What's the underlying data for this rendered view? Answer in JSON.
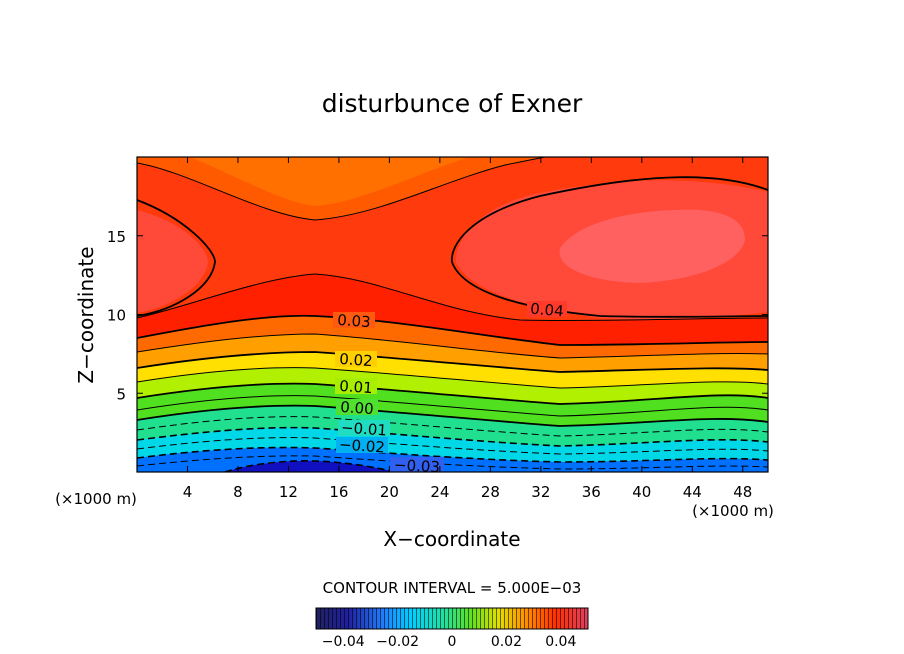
{
  "chart_data": {
    "type": "contour",
    "title": "disturbunce of Exner",
    "xlabel": "X−coordinate",
    "ylabel": "Z−coordinate",
    "x_unit_left": "(×1000 m)",
    "x_unit_right": "(×1000 m)",
    "xlim": [
      0,
      50
    ],
    "ylim": [
      0,
      20
    ],
    "x_ticks": [
      "4",
      "8",
      "12",
      "16",
      "20",
      "24",
      "28",
      "32",
      "36",
      "40",
      "44",
      "48"
    ],
    "y_ticks": [
      "5",
      "10",
      "15"
    ],
    "contour_interval_text": "CONTOUR INTERVAL = 5.000E−03",
    "contour_labels": [
      "0.04",
      "0.03",
      "0.02",
      "0.01",
      "0.00",
      "−0.01",
      "−0.02",
      "−0.03"
    ],
    "colorbar": {
      "range": [
        -0.05,
        0.05
      ],
      "tick_labels": [
        "−0.04",
        "−0.02",
        "0",
        "0.02",
        "0.04"
      ],
      "colormap": [
        "#10008a",
        "#0040ff",
        "#00c8ff",
        "#00e0b0",
        "#40e040",
        "#b8f000",
        "#ffff00",
        "#ffc000",
        "#ff8000",
        "#ff2000",
        "#f03030"
      ]
    }
  }
}
